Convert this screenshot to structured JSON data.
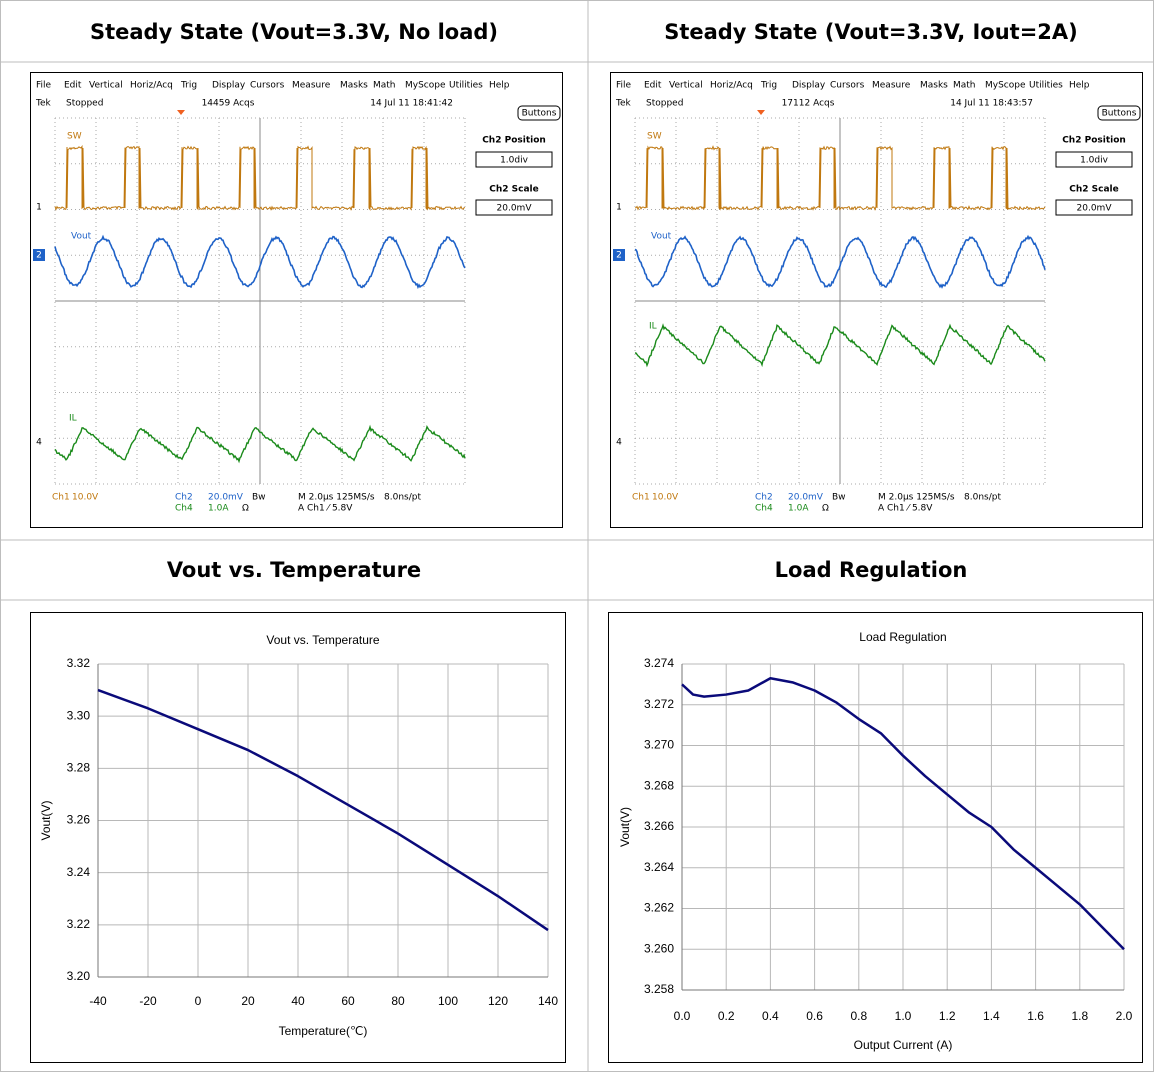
{
  "table": {
    "headers": [
      "Steady State (Vout=3.3V, No load)",
      "Steady State (Vout=3.3V, Iout=2A)",
      "Vout vs. Temperature",
      "Load Regulation"
    ]
  },
  "scopes": [
    {
      "menu": [
        "File",
        "Edit",
        "Vertical",
        "Horiz/Acq",
        "Trig",
        "Display",
        "Cursors",
        "Measure",
        "Masks",
        "Math",
        "MyScope",
        "Utilities",
        "Help"
      ],
      "brand": "Tek",
      "status": "Stopped",
      "acqs": "14459 Acqs",
      "timestamp": "14 Jul 11 18:41:42",
      "button": "Buttons",
      "position_label": "Ch2 Position",
      "position": "1.0div",
      "scale_label": "Ch2 Scale",
      "scale": "20.0mV",
      "traces": [
        "SW",
        "Vout",
        "IL"
      ],
      "markers": [
        "1",
        "2",
        "4"
      ],
      "readout": [
        "Ch1",
        "10.0V",
        "Ch2",
        "20.0mV",
        "Ch4",
        "1.0A",
        "Ω",
        "Bw",
        "M 2.0µs 125MS/s",
        "8.0ns/pt",
        "A Ch1 ⁄ 5.8V"
      ]
    },
    {
      "menu": [
        "File",
        "Edit",
        "Vertical",
        "Horiz/Acq",
        "Trig",
        "Display",
        "Cursors",
        "Measure",
        "Masks",
        "Math",
        "MyScope",
        "Utilities",
        "Help"
      ],
      "brand": "Tek",
      "status": "Stopped",
      "acqs": "17112 Acqs",
      "timestamp": "14 Jul 11 18:43:57",
      "button": "Buttons",
      "position_label": "Ch2 Position",
      "position": "1.0div",
      "scale_label": "Ch2 Scale",
      "scale": "20.0mV",
      "traces": [
        "SW",
        "Vout",
        "IL"
      ],
      "markers": [
        "1",
        "2",
        "4"
      ],
      "readout": [
        "Ch1",
        "10.0V",
        "Ch2",
        "20.0mV",
        "Ch4",
        "1.0A",
        "Ω",
        "Bw",
        "M 2.0µs 125MS/s",
        "8.0ns/pt",
        "A Ch1 ⁄ 5.8V"
      ]
    }
  ],
  "chart_data": [
    {
      "type": "line",
      "title": "Vout vs. Temperature",
      "xlabel": "Temperature(℃)",
      "ylabel": "Vout(V)",
      "x": [
        -40,
        -20,
        0,
        20,
        40,
        60,
        80,
        100,
        120,
        140
      ],
      "values": [
        3.31,
        3.303,
        3.295,
        3.287,
        3.277,
        3.266,
        3.255,
        3.243,
        3.231,
        3.218
      ],
      "color": "#0a0a7a",
      "xlim": [
        -40,
        140
      ],
      "ylim": [
        3.2,
        3.32
      ],
      "xticks": [
        -40,
        -20,
        0,
        20,
        40,
        60,
        80,
        100,
        120,
        140
      ],
      "yticks": [
        {
          "value": 3.2,
          "label": "3.20"
        },
        3.22,
        3.24,
        3.26,
        3.28,
        {
          "value": 3.3,
          "label": "3.30"
        },
        3.32
      ],
      "grid": true
    },
    {
      "type": "line",
      "title": "Load Regulation",
      "xlabel": "Output Current (A)",
      "ylabel": "Vout(V)",
      "x": [
        0,
        0.05,
        0.1,
        0.2,
        0.3,
        0.4,
        0.5,
        0.6,
        0.7,
        0.8,
        0.9,
        1.0,
        1.1,
        1.2,
        1.3,
        1.4,
        1.5,
        1.6,
        1.7,
        1.8,
        1.9,
        2.0
      ],
      "values": [
        3.273,
        3.2725,
        3.2724,
        3.2725,
        3.2727,
        3.2733,
        3.2731,
        3.2727,
        3.2721,
        3.2713,
        3.2706,
        3.2695,
        3.2685,
        3.2676,
        3.2667,
        3.266,
        3.2649,
        3.264,
        3.2631,
        3.2622,
        3.2611,
        3.26
      ],
      "color": "#0a0a7a",
      "xlim": [
        0,
        2
      ],
      "ylim": [
        3.258,
        3.274
      ],
      "xticks": [
        {
          "value": 0,
          "label": "0.0"
        },
        0.2,
        0.4,
        0.6,
        0.8,
        {
          "value": 1,
          "label": "1.0"
        },
        1.2,
        1.4,
        1.6,
        1.8,
        {
          "value": 2,
          "label": "2.0"
        }
      ],
      "yticks": [
        3.258,
        {
          "value": 3.26,
          "label": "3.260"
        },
        3.262,
        3.264,
        3.266,
        3.268,
        {
          "value": 3.27,
          "label": "3.270"
        },
        3.272,
        3.274
      ],
      "grid": true
    }
  ]
}
